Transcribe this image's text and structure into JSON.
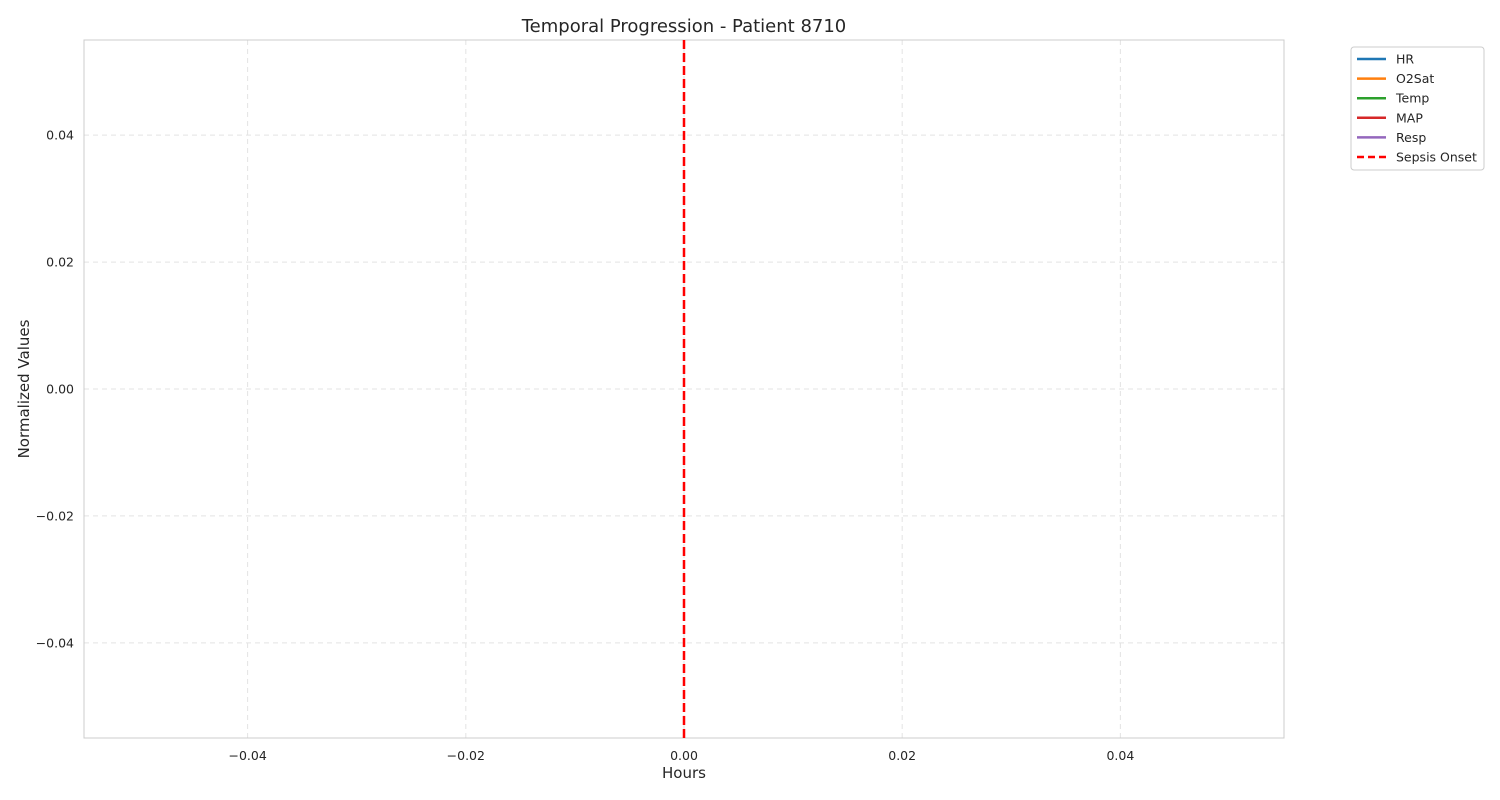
{
  "chart_data": {
    "type": "line",
    "title": "Temporal Progression - Patient 8710",
    "xlabel": "Hours",
    "ylabel": "Normalized Values",
    "xlim": [
      -0.055,
      0.055
    ],
    "ylim": [
      -0.055,
      0.055
    ],
    "xticks": [
      -0.04,
      -0.02,
      0.0,
      0.02,
      0.04
    ],
    "xtick_labels": [
      "−0.04",
      "−0.02",
      "0.00",
      "0.02",
      "0.04"
    ],
    "yticks": [
      -0.04,
      -0.02,
      0.0,
      0.02,
      0.04
    ],
    "ytick_labels": [
      "−0.04",
      "−0.02",
      "0.00",
      "0.02",
      "0.04"
    ],
    "grid": true,
    "legend_position": "outside-top-right",
    "series": [
      {
        "name": "HR",
        "color": "#1f77b4",
        "x": [],
        "y": []
      },
      {
        "name": "O2Sat",
        "color": "#ff7f0e",
        "x": [],
        "y": []
      },
      {
        "name": "Temp",
        "color": "#2ca02c",
        "x": [],
        "y": []
      },
      {
        "name": "MAP",
        "color": "#d62728",
        "x": [],
        "y": []
      },
      {
        "name": "Resp",
        "color": "#9467bd",
        "x": [],
        "y": []
      }
    ],
    "vlines": [
      {
        "name": "Sepsis Onset",
        "x": 0.0,
        "color": "#ff0000",
        "style": "dashed"
      }
    ]
  }
}
